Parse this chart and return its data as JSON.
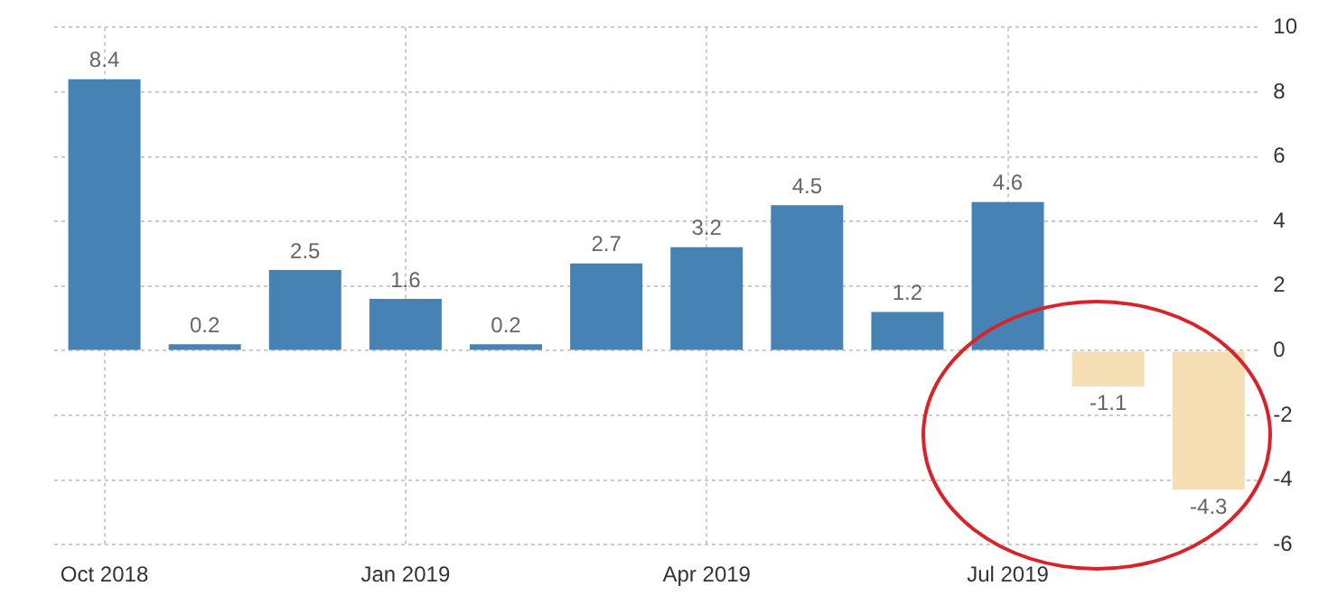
{
  "chart_data": {
    "type": "bar",
    "categories": [
      "Oct 2018",
      null,
      null,
      "Jan 2019",
      null,
      null,
      "Apr 2019",
      null,
      null,
      "Jul 2019",
      null,
      null
    ],
    "values": [
      8.4,
      0.2,
      2.5,
      1.6,
      0.2,
      2.7,
      3.2,
      4.5,
      1.2,
      4.6,
      -1.1,
      -4.3
    ],
    "colors": [
      "#4682b4",
      "#4682b4",
      "#4682b4",
      "#4682b4",
      "#4682b4",
      "#4682b4",
      "#4682b4",
      "#4682b4",
      "#4682b4",
      "#4682b4",
      "#f5deb3",
      "#f5deb3"
    ],
    "ylim": [
      -6,
      10
    ],
    "yticks": [
      -6,
      -4,
      -2,
      0,
      2,
      4,
      6,
      8,
      10
    ],
    "grid": true,
    "data_labels": true,
    "legend": false
  }
}
